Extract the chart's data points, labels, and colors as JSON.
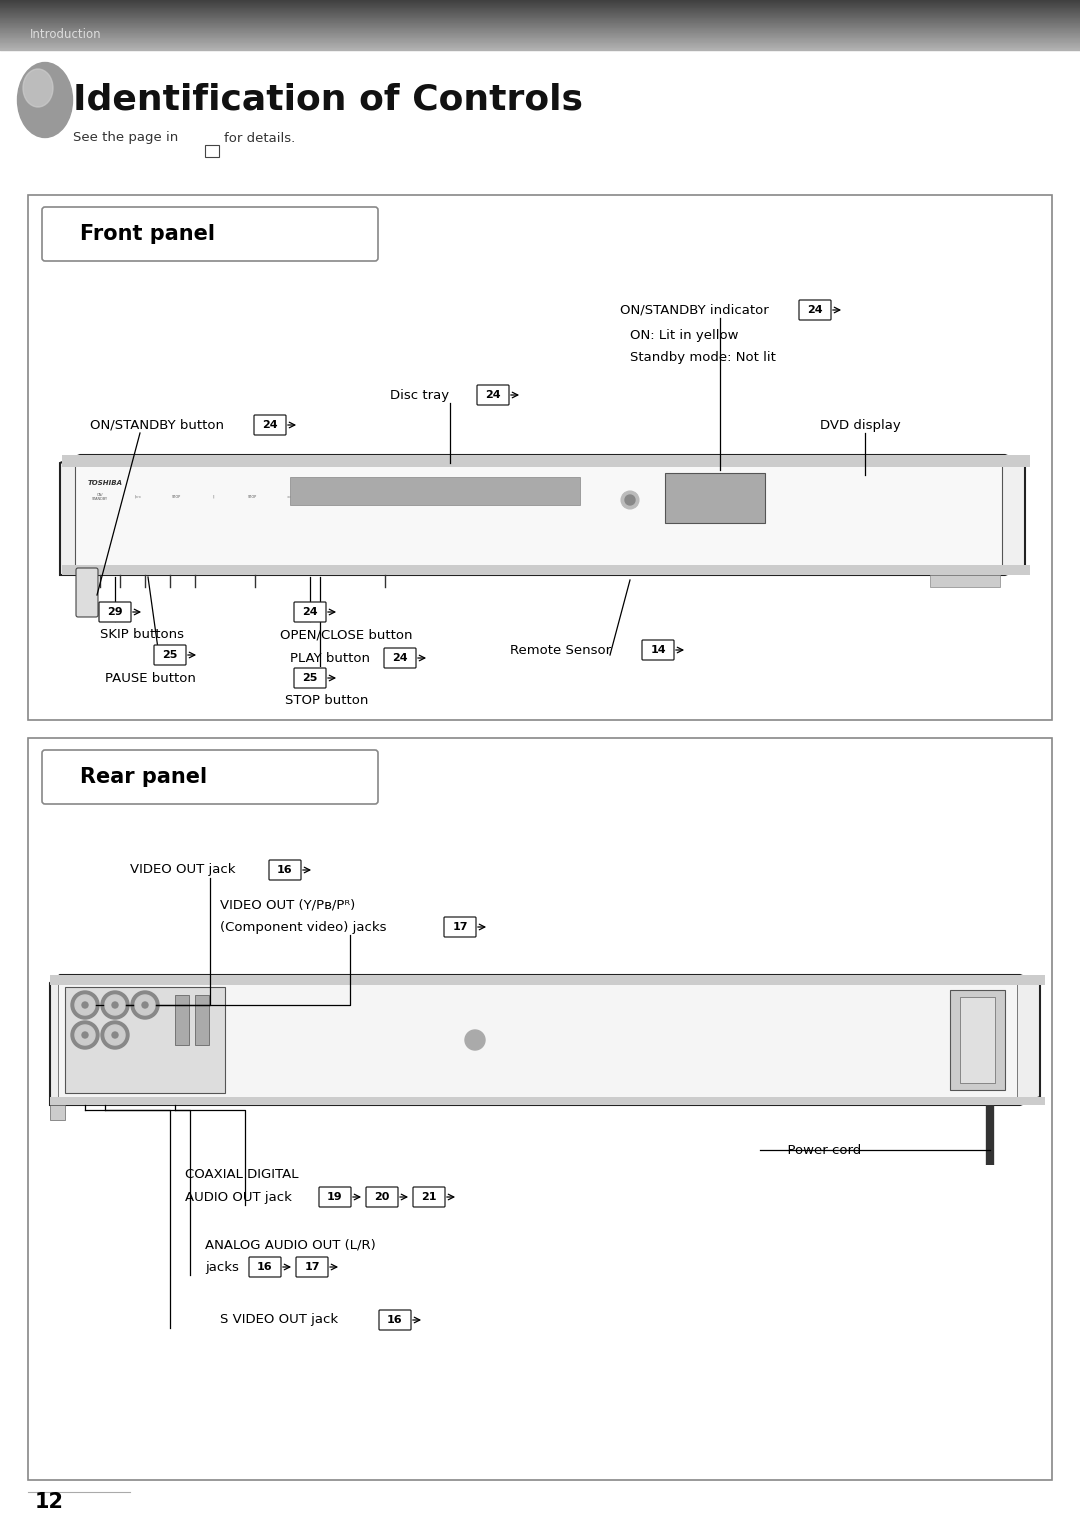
{
  "bg_color": "#ffffff",
  "header_text": "Introduction",
  "title": "Identification of Controls",
  "subtitle": "See the page in",
  "subtitle2": "for details.",
  "front_panel_label": "Front panel",
  "rear_panel_label": "Rear panel",
  "page_number": "12",
  "fig_w": 10.8,
  "fig_h": 15.24,
  "dpi": 100
}
